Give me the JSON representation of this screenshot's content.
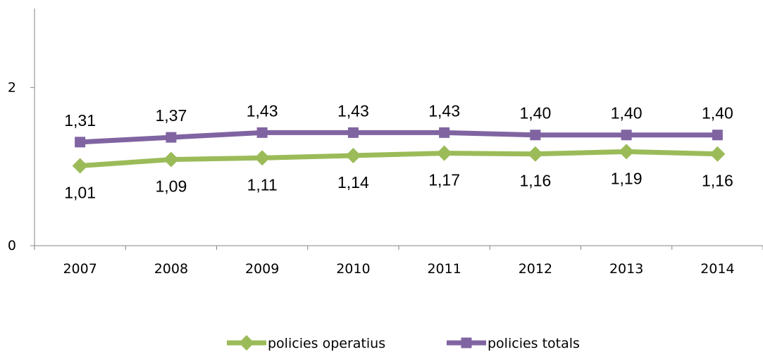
{
  "chart_data": {
    "type": "line",
    "categories": [
      "2007",
      "2008",
      "2009",
      "2010",
      "2011",
      "2012",
      "2013",
      "2014"
    ],
    "series": [
      {
        "name": "policies operatius",
        "values": [
          1.01,
          1.09,
          1.11,
          1.14,
          1.17,
          1.16,
          1.19,
          1.16
        ],
        "labels": [
          "1,01",
          "1,09",
          "1,11",
          "1,14",
          "1,17",
          "1,16",
          "1,19",
          "1,16"
        ],
        "color": "#9BBB59",
        "marker": "diamond",
        "label_position": "below"
      },
      {
        "name": "policies totals",
        "values": [
          1.31,
          1.37,
          1.43,
          1.43,
          1.43,
          1.4,
          1.4,
          1.4
        ],
        "labels": [
          "1,31",
          "1,37",
          "1,43",
          "1,43",
          "1,43",
          "1,40",
          "1,40",
          "1,40"
        ],
        "color": "#8064A2",
        "marker": "square",
        "label_position": "above"
      }
    ],
    "yticks": [
      "0",
      "2"
    ],
    "ytick_values": [
      0,
      2
    ],
    "ylim": [
      0,
      3
    ],
    "grid": false,
    "legend_position": "bottom"
  }
}
